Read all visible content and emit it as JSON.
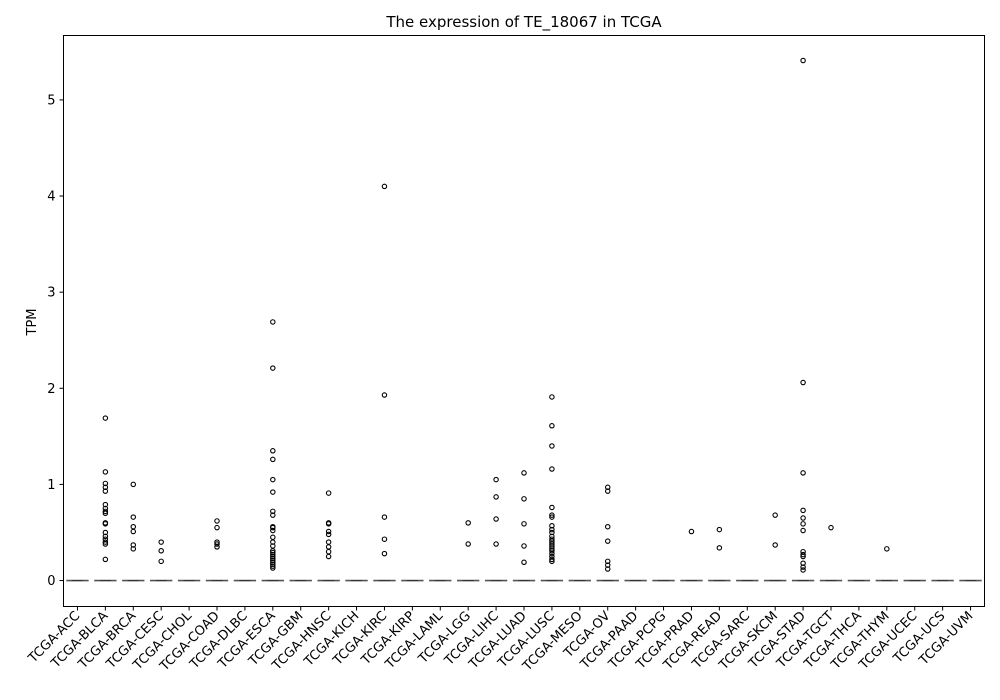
{
  "chart_data": {
    "type": "box",
    "title": "The expression of TE_18067 in TCGA",
    "xlabel": "",
    "ylabel": "TPM",
    "ylim": [
      -0.27,
      5.67
    ],
    "yticks": [
      0,
      1,
      2,
      3,
      4,
      5
    ],
    "grid": false,
    "categories": [
      "TCGA-ACC",
      "TCGA-BLCA",
      "TCGA-BRCA",
      "TCGA-CESC",
      "TCGA-CHOL",
      "TCGA-COAD",
      "TCGA-DLBC",
      "TCGA-ESCA",
      "TCGA-GBM",
      "TCGA-HNSC",
      "TCGA-KICH",
      "TCGA-KIRC",
      "TCGA-KIRP",
      "TCGA-LAML",
      "TCGA-LGG",
      "TCGA-LIHC",
      "TCGA-LUAD",
      "TCGA-LUSC",
      "TCGA-MESO",
      "TCGA-OV",
      "TCGA-PAAD",
      "TCGA-PCPG",
      "TCGA-PRAD",
      "TCGA-READ",
      "TCGA-SARC",
      "TCGA-SKCM",
      "TCGA-STAD",
      "TCGA-TGCT",
      "TCGA-THCA",
      "TCGA-THYM",
      "TCGA-UCEC",
      "TCGA-UCS",
      "TCGA-UVM"
    ],
    "median": [
      0,
      0,
      0,
      0,
      0,
      0,
      0,
      0,
      0,
      0,
      0,
      0,
      0,
      0,
      0,
      0,
      0,
      0,
      0,
      0,
      0,
      0,
      0,
      0,
      0,
      0,
      0,
      0,
      0,
      0,
      0,
      0,
      0
    ],
    "outliers": [
      [],
      [
        1.69,
        1.13,
        1.01,
        0.97,
        0.93,
        0.79,
        0.75,
        0.72,
        0.7,
        0.6,
        0.59,
        0.5,
        0.46,
        0.43,
        0.4,
        0.38,
        0.22
      ],
      [
        1.0,
        0.66,
        0.56,
        0.51,
        0.37,
        0.33
      ],
      [
        0.4,
        0.31,
        0.2
      ],
      [],
      [
        0.62,
        0.55,
        0.4,
        0.38,
        0.35
      ],
      [],
      [
        2.69,
        2.21,
        1.35,
        1.26,
        1.05,
        0.92,
        0.72,
        0.68,
        0.56,
        0.55,
        0.52,
        0.45,
        0.4,
        0.36,
        0.31,
        0.29,
        0.27,
        0.25,
        0.23,
        0.21,
        0.19,
        0.17,
        0.15,
        0.13
      ],
      [],
      [
        0.91,
        0.6,
        0.59,
        0.51,
        0.48,
        0.4,
        0.35,
        0.3,
        0.25
      ],
      [],
      [
        4.1,
        1.93,
        0.66,
        0.43,
        0.28
      ],
      [],
      [],
      [
        0.6,
        0.38
      ],
      [
        1.05,
        0.87,
        0.64,
        0.38
      ],
      [
        1.12,
        0.85,
        0.59,
        0.36,
        0.19
      ],
      [
        1.91,
        1.61,
        1.4,
        1.16,
        0.76,
        0.68,
        0.66,
        0.57,
        0.53,
        0.5,
        0.46,
        0.43,
        0.41,
        0.39,
        0.37,
        0.35,
        0.33,
        0.31,
        0.28,
        0.25,
        0.22,
        0.2
      ],
      [],
      [
        0.97,
        0.93,
        0.56,
        0.41,
        0.2,
        0.16,
        0.12
      ],
      [],
      [],
      [
        0.51
      ],
      [
        0.53,
        0.34
      ],
      [],
      [
        0.68,
        0.37
      ],
      [
        5.41,
        2.06,
        1.12,
        0.73,
        0.65,
        0.59,
        0.52,
        0.3,
        0.27,
        0.25,
        0.18,
        0.14,
        0.11
      ],
      [
        0.55
      ],
      [],
      [
        0.33
      ],
      [],
      [],
      []
    ]
  }
}
